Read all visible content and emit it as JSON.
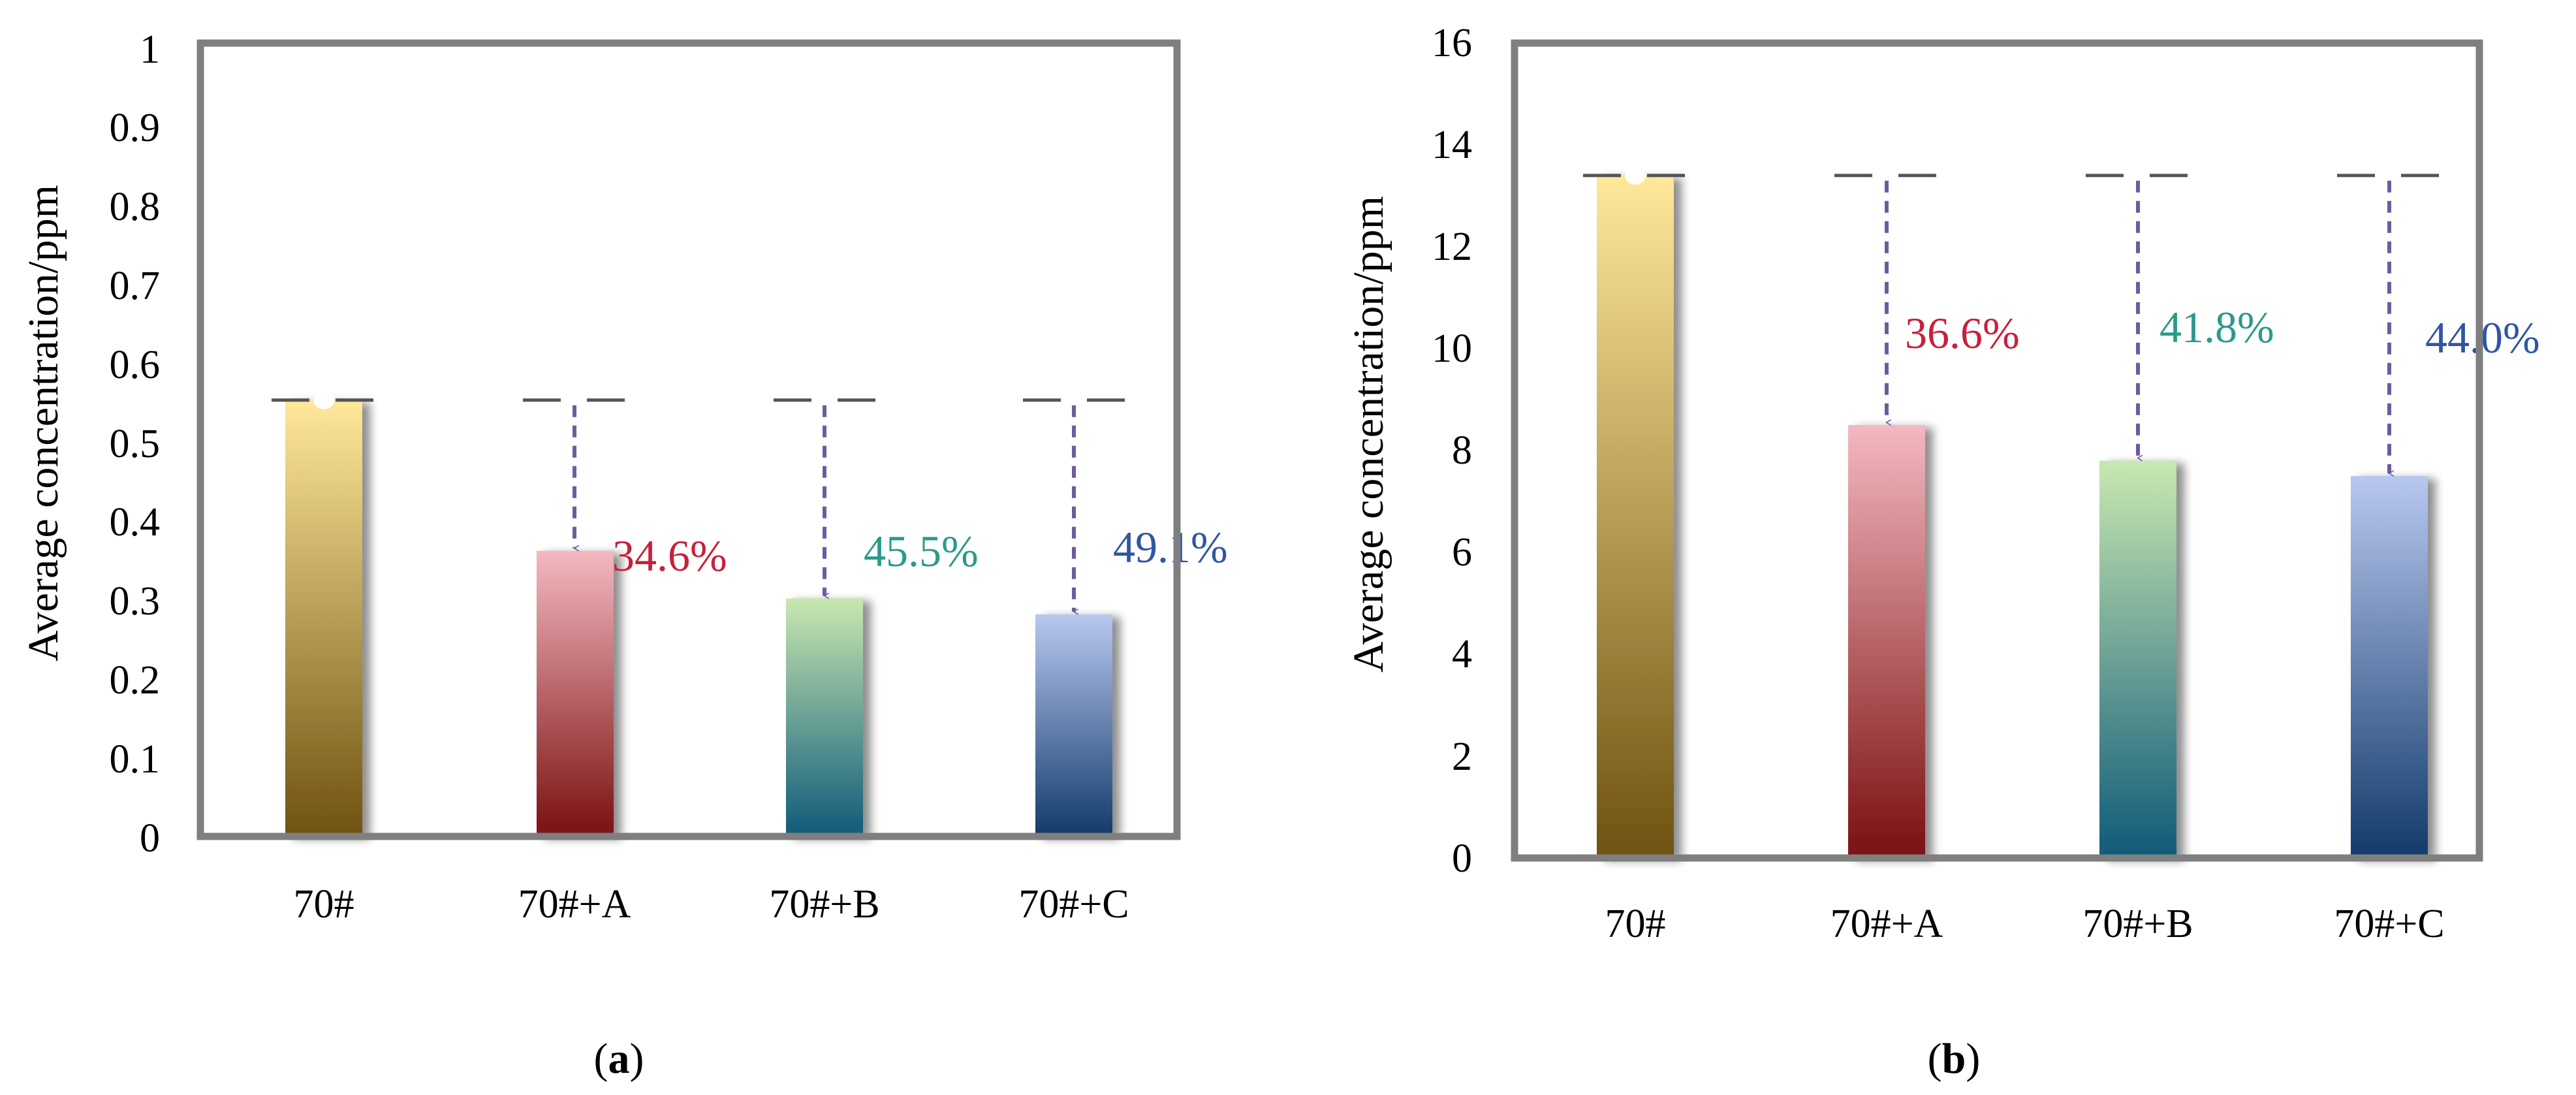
{
  "colors": {
    "axis": "#7f7f7f",
    "arrow": "#6f5a9e",
    "dash": "#555555",
    "pct_a": "#c8203a",
    "pct_b": "#2a9a8a",
    "pct_c": "#2f55a4",
    "bar_top": [
      "#ffe89a",
      "#f4b8c0",
      "#c8e8b0",
      "#b8c8f0"
    ],
    "bar_bottom": [
      "#6f5210",
      "#7a1010",
      "#0f5a7a",
      "#123a6a"
    ]
  },
  "chart_data": [
    {
      "type": "bar",
      "caption_letter": "a",
      "caption_open": "(",
      "caption_close": ")",
      "ylabel": "Average concentration/ppm",
      "categories": [
        "70#",
        "70#+A",
        "70#+B",
        "70#+C"
      ],
      "values": [
        0.55,
        0.36,
        0.3,
        0.28
      ],
      "reference": 0.55,
      "ylim": [
        0,
        1
      ],
      "yticks": [
        "0",
        "0.1",
        "0.2",
        "0.3",
        "0.4",
        "0.5",
        "0.6",
        "0.7",
        "0.8",
        "0.9",
        "1"
      ],
      "annotations": [
        "",
        "34.6%",
        "45.5%",
        "49.1%"
      ],
      "grid": false
    },
    {
      "type": "bar",
      "caption_letter": "b",
      "caption_open": "(",
      "caption_close": ")",
      "ylabel": "Average concentration/ppm",
      "categories": [
        "70#",
        "70#+A",
        "70#+B",
        "70#+C"
      ],
      "values": [
        13.4,
        8.5,
        7.8,
        7.5
      ],
      "reference": 13.4,
      "ylim": [
        0,
        16
      ],
      "yticks": [
        "0",
        "2",
        "4",
        "6",
        "8",
        "10",
        "12",
        "14",
        "16"
      ],
      "annotations": [
        "",
        "36.6%",
        "41.8%",
        "44.0%"
      ],
      "grid": false
    }
  ]
}
